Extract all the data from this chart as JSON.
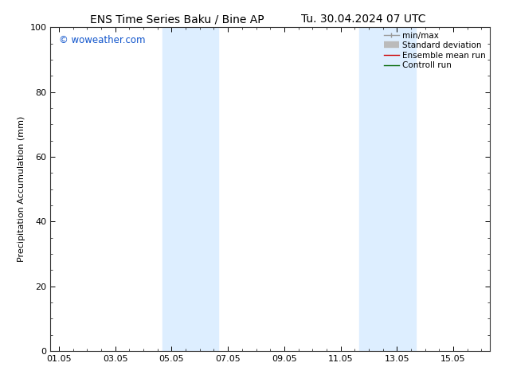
{
  "title_left": "ENS Time Series Baku / Bine AP",
  "title_right": "Tu. 30.04.2024 07 UTC",
  "ylabel": "Precipitation Accumulation (mm)",
  "ylim": [
    0,
    100
  ],
  "yticks": [
    0,
    20,
    40,
    60,
    80,
    100
  ],
  "xtick_labels": [
    "01.05",
    "03.05",
    "05.05",
    "07.05",
    "09.05",
    "11.05",
    "13.05",
    "15.05"
  ],
  "xtick_positions": [
    0,
    2,
    4,
    6,
    8,
    10,
    12,
    14
  ],
  "xlim": [
    -0.3,
    15.3
  ],
  "shaded_bands": [
    {
      "x_start": 3.67,
      "x_end": 5.67
    },
    {
      "x_start": 10.67,
      "x_end": 12.67
    }
  ],
  "shaded_color": "#ddeeff",
  "watermark_text": "© woweather.com",
  "watermark_color": "#1155cc",
  "background_color": "#ffffff",
  "font_size_title": 10,
  "font_size_axis": 8,
  "font_size_tick": 8,
  "font_size_legend": 7.5,
  "font_size_watermark": 8.5
}
